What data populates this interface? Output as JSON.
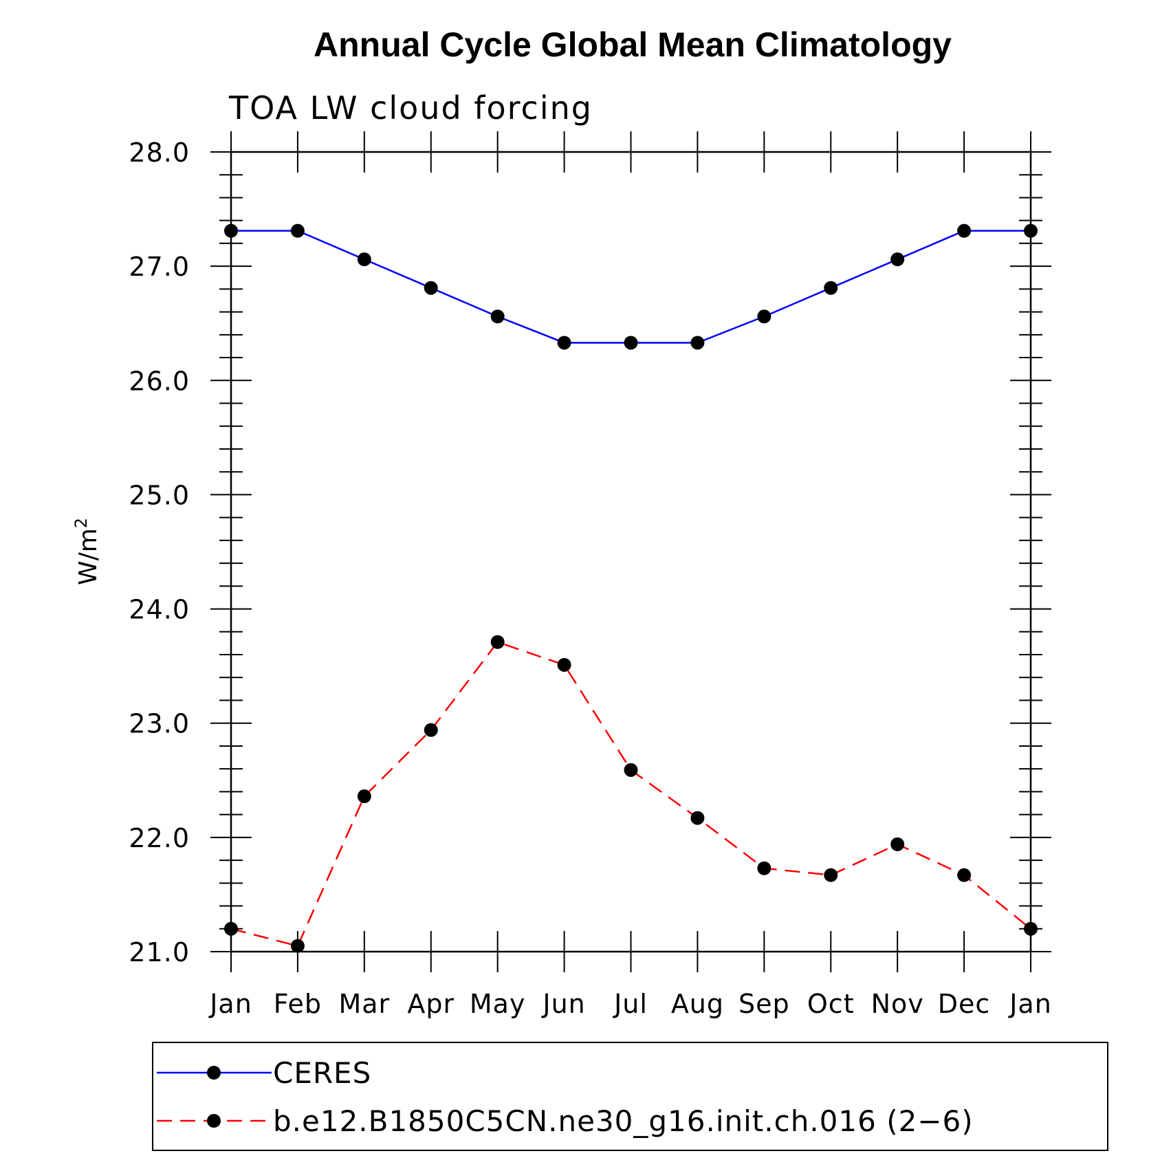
{
  "chart_data": {
    "type": "line",
    "title": "Annual Cycle Global Mean Climatology",
    "subtitle": "TOA LW cloud forcing",
    "ylabel": "W/m",
    "ylabel_superscript": "2",
    "xlabel": "",
    "ylim": [
      21.0,
      28.0
    ],
    "yticks": [
      "21.0",
      "22.0",
      "23.0",
      "24.0",
      "25.0",
      "26.0",
      "27.0",
      "28.0"
    ],
    "categories": [
      "Jan",
      "Feb",
      "Mar",
      "Apr",
      "May",
      "Jun",
      "Jul",
      "Aug",
      "Sep",
      "Oct",
      "Nov",
      "Dec",
      "Jan"
    ],
    "series": [
      {
        "name": "CERES",
        "color": "#0000ff",
        "dash": "solid",
        "values": [
          27.31,
          27.31,
          27.06,
          26.81,
          26.56,
          26.33,
          26.33,
          26.33,
          26.56,
          26.81,
          27.06,
          27.31,
          27.31
        ]
      },
      {
        "name": "b.e12.B1850C5CN.ne30_g16.init.ch.016 (2−6)",
        "color": "#ff0000",
        "dash": "dashed",
        "values": [
          21.2,
          21.05,
          22.36,
          22.94,
          23.71,
          23.51,
          22.59,
          22.17,
          21.73,
          21.67,
          21.94,
          21.67,
          21.2
        ]
      }
    ],
    "legend_position": "bottom"
  }
}
